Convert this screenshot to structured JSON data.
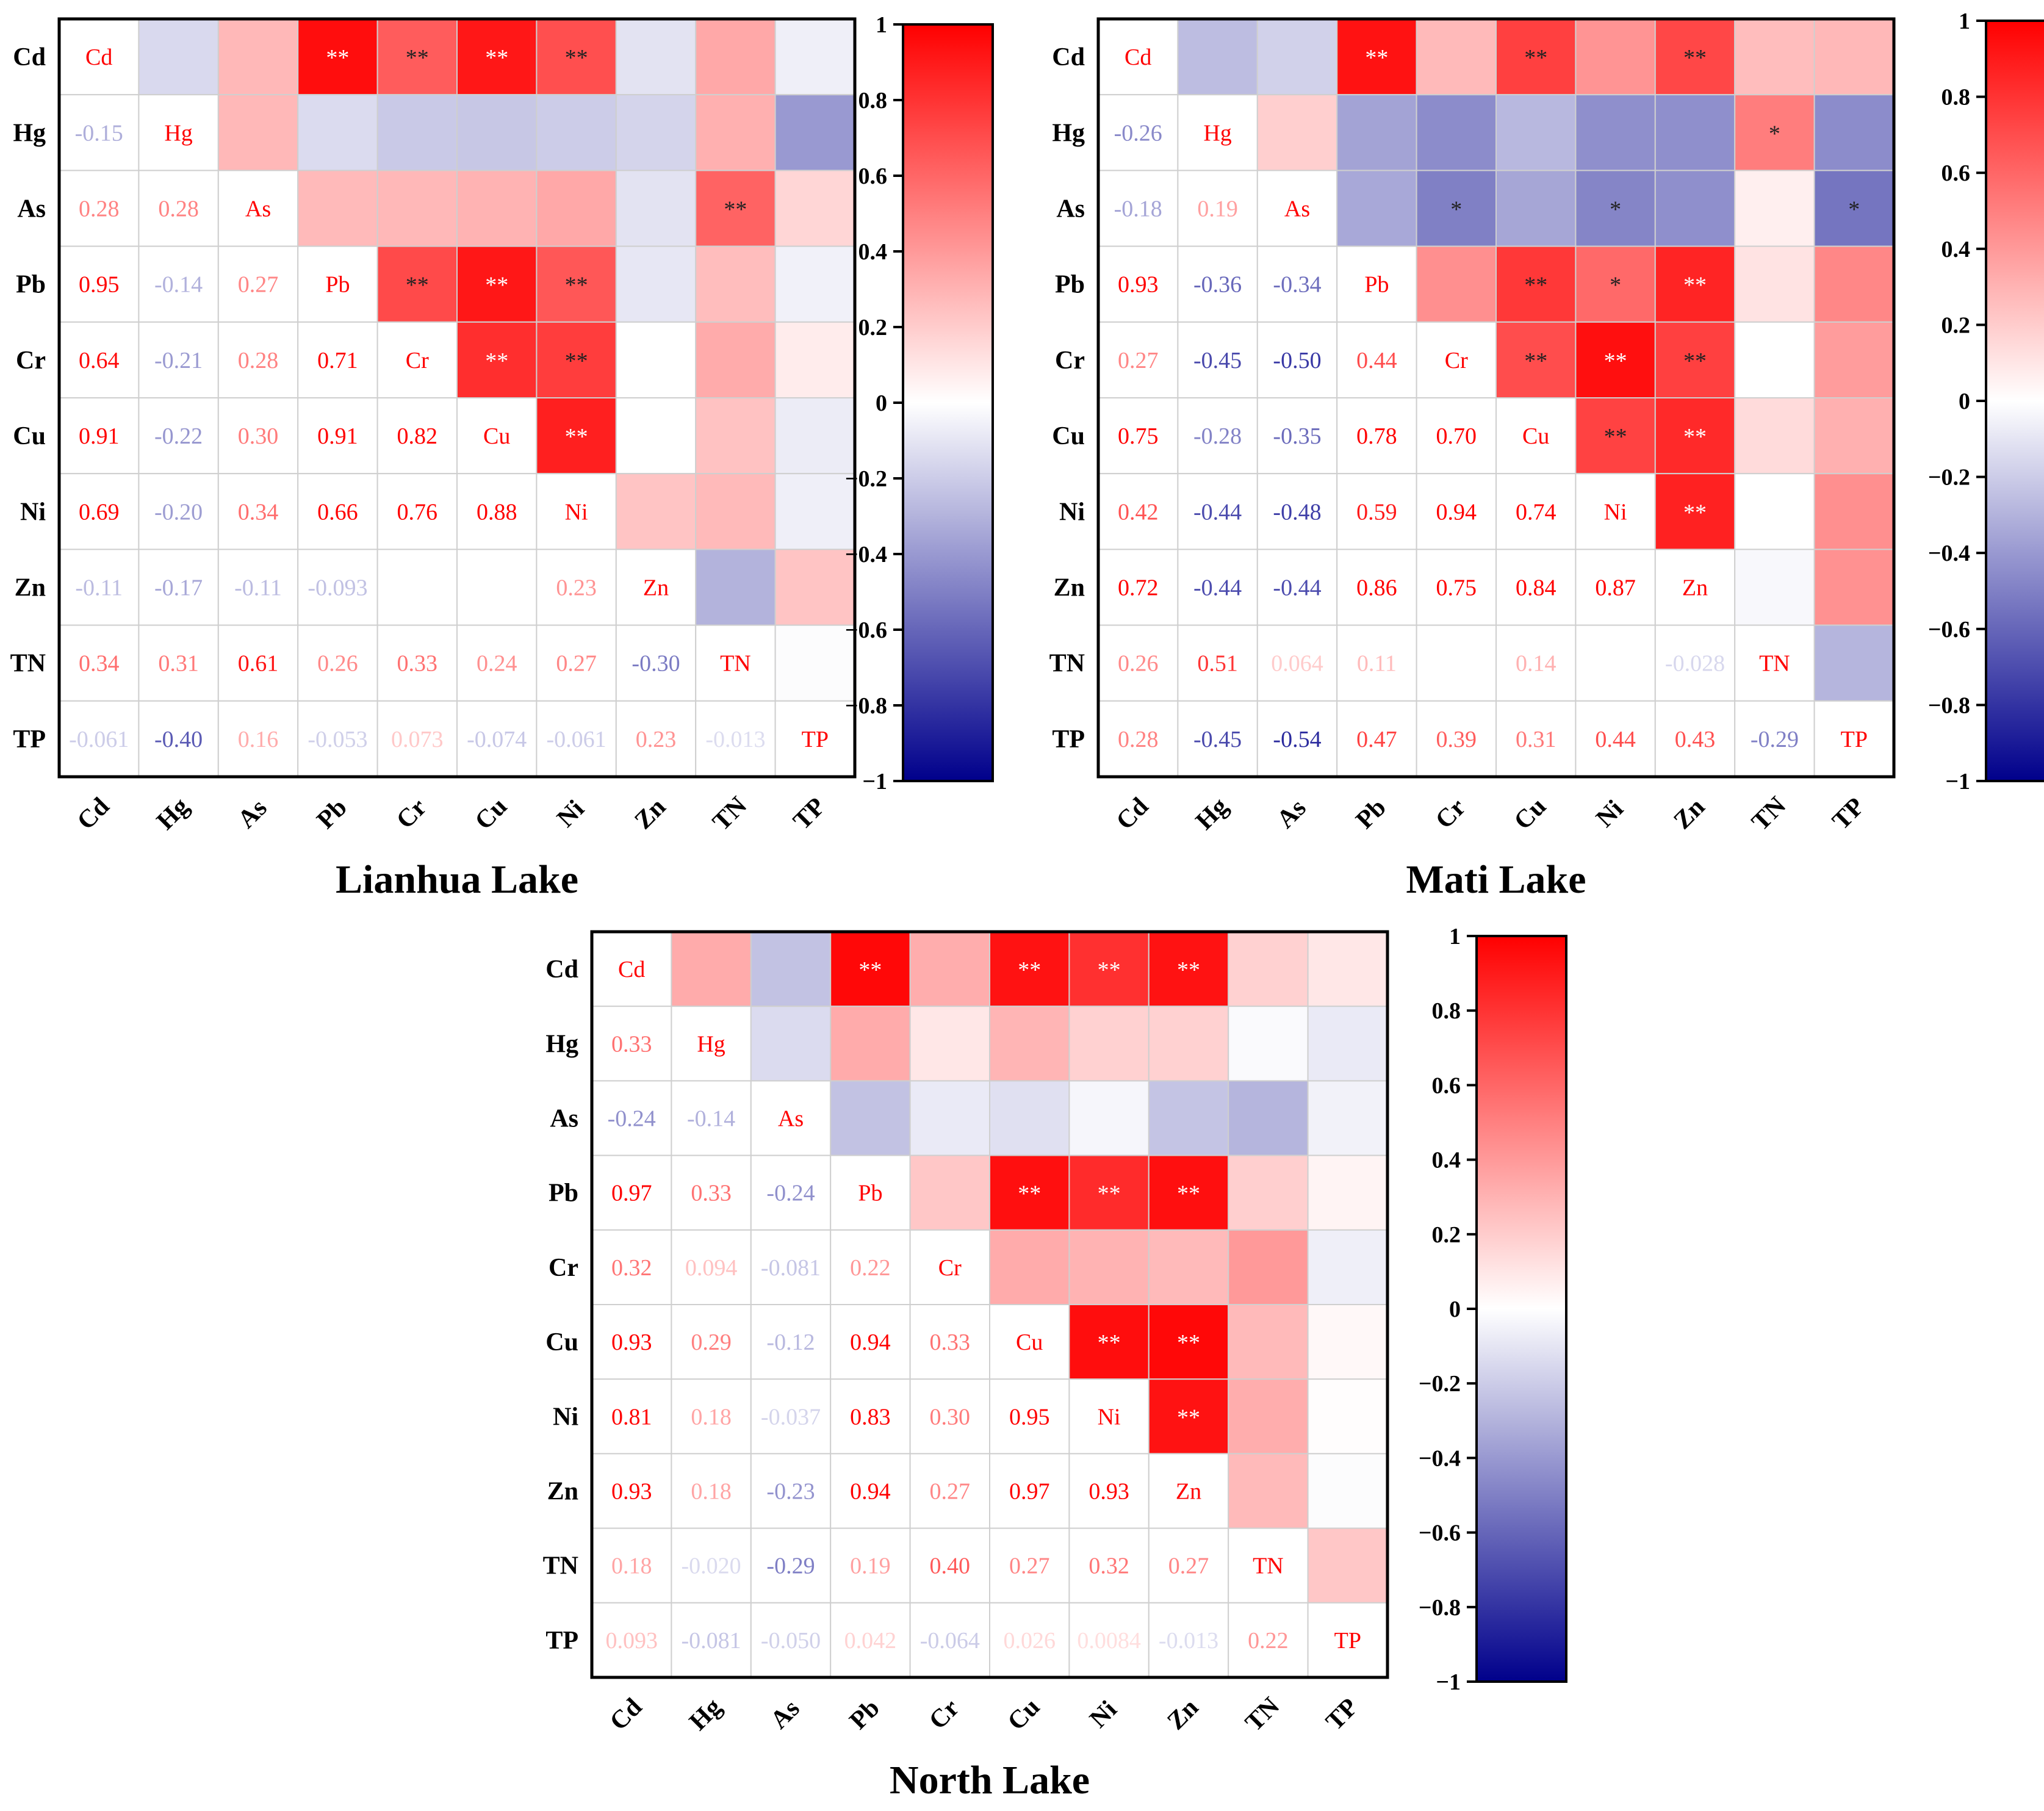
{
  "variables": [
    "Cd",
    "Hg",
    "As",
    "Pb",
    "Cr",
    "Cu",
    "Ni",
    "Zn",
    "TN",
    "TP"
  ],
  "colorbar": {
    "ticks": [
      "1",
      "0.8",
      "0.6",
      "0.4",
      "0.2",
      "0",
      "−0.2",
      "−0.4",
      "−0.6",
      "−0.8",
      "−1"
    ],
    "values": [
      1,
      0.8,
      0.6,
      0.4,
      0.2,
      0,
      -0.2,
      -0.4,
      -0.6,
      -0.8,
      -1
    ],
    "colors": {
      "positive": "#ff0000",
      "zero": "#ffffff",
      "negative": "#00008b"
    }
  },
  "chart_data": [
    {
      "type": "heatmap",
      "title": "Lianhua Lake",
      "lower_values": [
        [
          null,
          null,
          null,
          null,
          null,
          null,
          null,
          null,
          null,
          null
        ],
        [
          "-0.15",
          null,
          null,
          null,
          null,
          null,
          null,
          null,
          null,
          null
        ],
        [
          "0.28",
          "0.28",
          null,
          null,
          null,
          null,
          null,
          null,
          null,
          null
        ],
        [
          "0.95",
          "-0.14",
          "0.27",
          null,
          null,
          null,
          null,
          null,
          null,
          null
        ],
        [
          "0.64",
          "-0.21",
          "0.28",
          "0.71",
          null,
          null,
          null,
          null,
          null,
          null
        ],
        [
          "0.91",
          "-0.22",
          "0.30",
          "0.91",
          "0.82",
          null,
          null,
          null,
          null,
          null
        ],
        [
          "0.69",
          "-0.20",
          "0.34",
          "0.66",
          "0.76",
          "0.88",
          null,
          null,
          null,
          null
        ],
        [
          "-0.11",
          "-0.17",
          "-0.11",
          "-0.093",
          "",
          "",
          "0.23",
          null,
          null,
          null
        ],
        [
          "0.34",
          "0.31",
          "0.61",
          "0.26",
          "0.33",
          "0.24",
          "0.27",
          "-0.30",
          null,
          null
        ],
        [
          "-0.061",
          "-0.40",
          "0.16",
          "-0.053",
          "0.073",
          "-0.074",
          "-0.061",
          "0.23",
          "-0.013",
          null
        ]
      ],
      "upper_marks": [
        [
          null,
          "",
          "",
          "**",
          "**",
          "**",
          "**",
          "",
          "",
          ""
        ],
        [
          null,
          null,
          "",
          "",
          "",
          "",
          "",
          "",
          "",
          ""
        ],
        [
          null,
          null,
          null,
          "",
          "",
          "",
          "",
          "",
          "**",
          ""
        ],
        [
          null,
          null,
          null,
          null,
          "**",
          "**",
          "**",
          "",
          "",
          ""
        ],
        [
          null,
          null,
          null,
          null,
          null,
          "**",
          "**",
          "",
          "",
          ""
        ],
        [
          null,
          null,
          null,
          null,
          null,
          null,
          "**",
          "",
          "",
          ""
        ],
        [
          null,
          null,
          null,
          null,
          null,
          null,
          null,
          "",
          "",
          ""
        ],
        [
          null,
          null,
          null,
          null,
          null,
          null,
          null,
          null,
          "",
          ""
        ],
        [
          null,
          null,
          null,
          null,
          null,
          null,
          null,
          null,
          null,
          ""
        ],
        [
          null,
          null,
          null,
          null,
          null,
          null,
          null,
          null,
          null,
          null
        ]
      ]
    },
    {
      "type": "heatmap",
      "title": "Mati Lake",
      "lower_values": [
        [
          null,
          null,
          null,
          null,
          null,
          null,
          null,
          null,
          null,
          null
        ],
        [
          "-0.26",
          null,
          null,
          null,
          null,
          null,
          null,
          null,
          null,
          null
        ],
        [
          "-0.18",
          "0.19",
          null,
          null,
          null,
          null,
          null,
          null,
          null,
          null
        ],
        [
          "0.93",
          "-0.36",
          "-0.34",
          null,
          null,
          null,
          null,
          null,
          null,
          null
        ],
        [
          "0.27",
          "-0.45",
          "-0.50",
          "0.44",
          null,
          null,
          null,
          null,
          null,
          null
        ],
        [
          "0.75",
          "-0.28",
          "-0.35",
          "0.78",
          "0.70",
          null,
          null,
          null,
          null,
          null
        ],
        [
          "0.42",
          "-0.44",
          "-0.48",
          "0.59",
          "0.94",
          "0.74",
          null,
          null,
          null,
          null
        ],
        [
          "0.72",
          "-0.44",
          "-0.44",
          "0.86",
          "0.75",
          "0.84",
          "0.87",
          null,
          null,
          null
        ],
        [
          "0.26",
          "0.51",
          "0.064",
          "0.11",
          "",
          "0.14",
          "",
          "-0.028",
          null,
          null
        ],
        [
          "0.28",
          "-0.45",
          "-0.54",
          "0.47",
          "0.39",
          "0.31",
          "0.44",
          "0.43",
          "-0.29",
          null
        ]
      ],
      "upper_marks": [
        [
          null,
          "",
          "",
          "**",
          "",
          "**",
          "",
          "**",
          "",
          ""
        ],
        [
          null,
          null,
          "",
          "",
          "",
          "",
          "",
          "",
          "*",
          ""
        ],
        [
          null,
          null,
          null,
          "",
          "*",
          "",
          "*",
          "",
          "",
          "*"
        ],
        [
          null,
          null,
          null,
          null,
          "",
          "**",
          "*",
          "**",
          "",
          ""
        ],
        [
          null,
          null,
          null,
          null,
          null,
          "**",
          "**",
          "**",
          "",
          ""
        ],
        [
          null,
          null,
          null,
          null,
          null,
          null,
          "**",
          "**",
          "",
          ""
        ],
        [
          null,
          null,
          null,
          null,
          null,
          null,
          null,
          "**",
          "",
          ""
        ],
        [
          null,
          null,
          null,
          null,
          null,
          null,
          null,
          null,
          "",
          ""
        ],
        [
          null,
          null,
          null,
          null,
          null,
          null,
          null,
          null,
          null,
          ""
        ],
        [
          null,
          null,
          null,
          null,
          null,
          null,
          null,
          null,
          null,
          null
        ]
      ]
    },
    {
      "type": "heatmap",
      "title": "North Lake",
      "lower_values": [
        [
          null,
          null,
          null,
          null,
          null,
          null,
          null,
          null,
          null,
          null
        ],
        [
          "0.33",
          null,
          null,
          null,
          null,
          null,
          null,
          null,
          null,
          null
        ],
        [
          "-0.24",
          "-0.14",
          null,
          null,
          null,
          null,
          null,
          null,
          null,
          null
        ],
        [
          "0.97",
          "0.33",
          "-0.24",
          null,
          null,
          null,
          null,
          null,
          null,
          null
        ],
        [
          "0.32",
          "0.094",
          "-0.081",
          "0.22",
          null,
          null,
          null,
          null,
          null,
          null
        ],
        [
          "0.93",
          "0.29",
          "-0.12",
          "0.94",
          "0.33",
          null,
          null,
          null,
          null,
          null
        ],
        [
          "0.81",
          "0.18",
          "-0.037",
          "0.83",
          "0.30",
          "0.95",
          null,
          null,
          null,
          null
        ],
        [
          "0.93",
          "0.18",
          "-0.23",
          "0.94",
          "0.27",
          "0.97",
          "0.93",
          null,
          null,
          null
        ],
        [
          "0.18",
          "-0.020",
          "-0.29",
          "0.19",
          "0.40",
          "0.27",
          "0.32",
          "0.27",
          null,
          null
        ],
        [
          "0.093",
          "-0.081",
          "-0.050",
          "0.042",
          "-0.064",
          "0.026",
          "0.0084",
          "-0.013",
          "0.22",
          null
        ]
      ],
      "upper_marks": [
        [
          null,
          "",
          "",
          "**",
          "",
          "**",
          "**",
          "**",
          "",
          ""
        ],
        [
          null,
          null,
          "",
          "",
          "",
          "",
          "",
          "",
          "",
          ""
        ],
        [
          null,
          null,
          null,
          "",
          "",
          "",
          "",
          "",
          "",
          ""
        ],
        [
          null,
          null,
          null,
          null,
          "",
          "**",
          "**",
          "**",
          "",
          ""
        ],
        [
          null,
          null,
          null,
          null,
          null,
          "",
          "",
          "",
          "",
          ""
        ],
        [
          null,
          null,
          null,
          null,
          null,
          null,
          "**",
          "**",
          "",
          ""
        ],
        [
          null,
          null,
          null,
          null,
          null,
          null,
          null,
          "**",
          "",
          ""
        ],
        [
          null,
          null,
          null,
          null,
          null,
          null,
          null,
          null,
          "",
          ""
        ],
        [
          null,
          null,
          null,
          null,
          null,
          null,
          null,
          null,
          null,
          ""
        ],
        [
          null,
          null,
          null,
          null,
          null,
          null,
          null,
          null,
          null,
          null
        ]
      ]
    }
  ]
}
